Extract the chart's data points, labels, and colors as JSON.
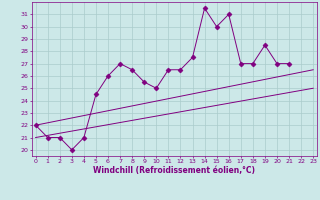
{
  "xlabel": "Windchill (Refroidissement éolien,°C)",
  "x_values": [
    0,
    1,
    2,
    3,
    4,
    5,
    6,
    7,
    8,
    9,
    10,
    11,
    12,
    13,
    14,
    15,
    16,
    17,
    18,
    19,
    20,
    21,
    22,
    23
  ],
  "series1": [
    22,
    21,
    21,
    20,
    21,
    24.5,
    26,
    27,
    26.5,
    25.5,
    25,
    26.5,
    26.5,
    27.5,
    31.5,
    30,
    31,
    27,
    27,
    28.5,
    27,
    27,
    null,
    null
  ],
  "line2_x": [
    0,
    23
  ],
  "line2_y": [
    22,
    26.5
  ],
  "line3_x": [
    0,
    23
  ],
  "line3_y": [
    21,
    25
  ],
  "line_color": "#800080",
  "bg_color": "#cce8e8",
  "grid_color": "#aacccc",
  "ylim": [
    19.5,
    32
  ],
  "xlim": [
    -0.3,
    23.3
  ],
  "yticks": [
    20,
    21,
    22,
    23,
    24,
    25,
    26,
    27,
    28,
    29,
    30,
    31
  ],
  "xticks": [
    0,
    1,
    2,
    3,
    4,
    5,
    6,
    7,
    8,
    9,
    10,
    11,
    12,
    13,
    14,
    15,
    16,
    17,
    18,
    19,
    20,
    21,
    22,
    23
  ]
}
